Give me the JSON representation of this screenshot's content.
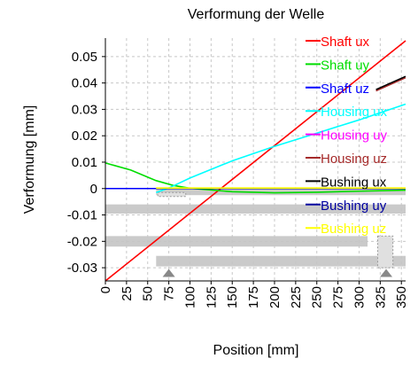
{
  "chart_data": {
    "type": "line",
    "title": "Verformung der Welle",
    "xlabel": "Position [mm]",
    "ylabel": "Verformung [mm]",
    "xlim": [
      0,
      355
    ],
    "ylim": [
      -0.035,
      0.057
    ],
    "grid": true,
    "legend_placement": "right",
    "x_ticks": [
      0,
      25,
      50,
      75,
      100,
      125,
      150,
      175,
      200,
      225,
      250,
      275,
      300,
      325,
      350
    ],
    "y_ticks": [
      0.05,
      0.04,
      0.03,
      0.02,
      0.01,
      0,
      -0.01,
      -0.02,
      -0.03
    ],
    "y_tick_labels": [
      "0.05",
      "0.04",
      "0.03",
      "0.02",
      "0.01",
      "0",
      "-0.01",
      "-0.02",
      "-0.03"
    ],
    "series": [
      {
        "name": "Shaft ux",
        "color": "#ff0000",
        "x": [
          0,
          355
        ],
        "y": [
          -0.035,
          0.056
        ]
      },
      {
        "name": "Shaft uy",
        "color": "#00dd00",
        "x": [
          0,
          30,
          60,
          80,
          100,
          150,
          200,
          250,
          300,
          355
        ],
        "y": [
          0.0097,
          0.007,
          0.003,
          0.0012,
          0.0001,
          -0.0012,
          -0.0016,
          -0.0014,
          -0.001,
          -0.0006
        ]
      },
      {
        "name": "Shaft uz",
        "color": "#0000ff",
        "x": [
          0,
          355
        ],
        "y": [
          0,
          0
        ]
      },
      {
        "name": "Housing ux",
        "color": "#00ffff",
        "x": [
          60,
          75,
          100,
          150,
          200,
          250,
          300,
          355
        ],
        "y": [
          -0.0015,
          0.0002,
          0.004,
          0.0105,
          0.016,
          0.021,
          0.026,
          0.032
        ]
      },
      {
        "name": "Housing uy",
        "color": "#ff00ff",
        "x": [
          60,
          355
        ],
        "y": [
          0,
          0
        ]
      },
      {
        "name": "Housing uz",
        "color": "#a52a2a",
        "x": [
          320,
          355
        ],
        "y": [
          0.037,
          0.042
        ]
      },
      {
        "name": "Bushing ux",
        "color": "#000000",
        "x": [
          320,
          355
        ],
        "y": [
          0.0375,
          0.0425
        ]
      },
      {
        "name": "Bushing uy",
        "color": "#0000a0",
        "x": [
          60,
          355
        ],
        "y": [
          0,
          0
        ]
      },
      {
        "name": "Bushing uz",
        "color": "#ffff00",
        "x": [
          60,
          355
        ],
        "y": [
          0.0002,
          0.0002
        ]
      }
    ]
  }
}
